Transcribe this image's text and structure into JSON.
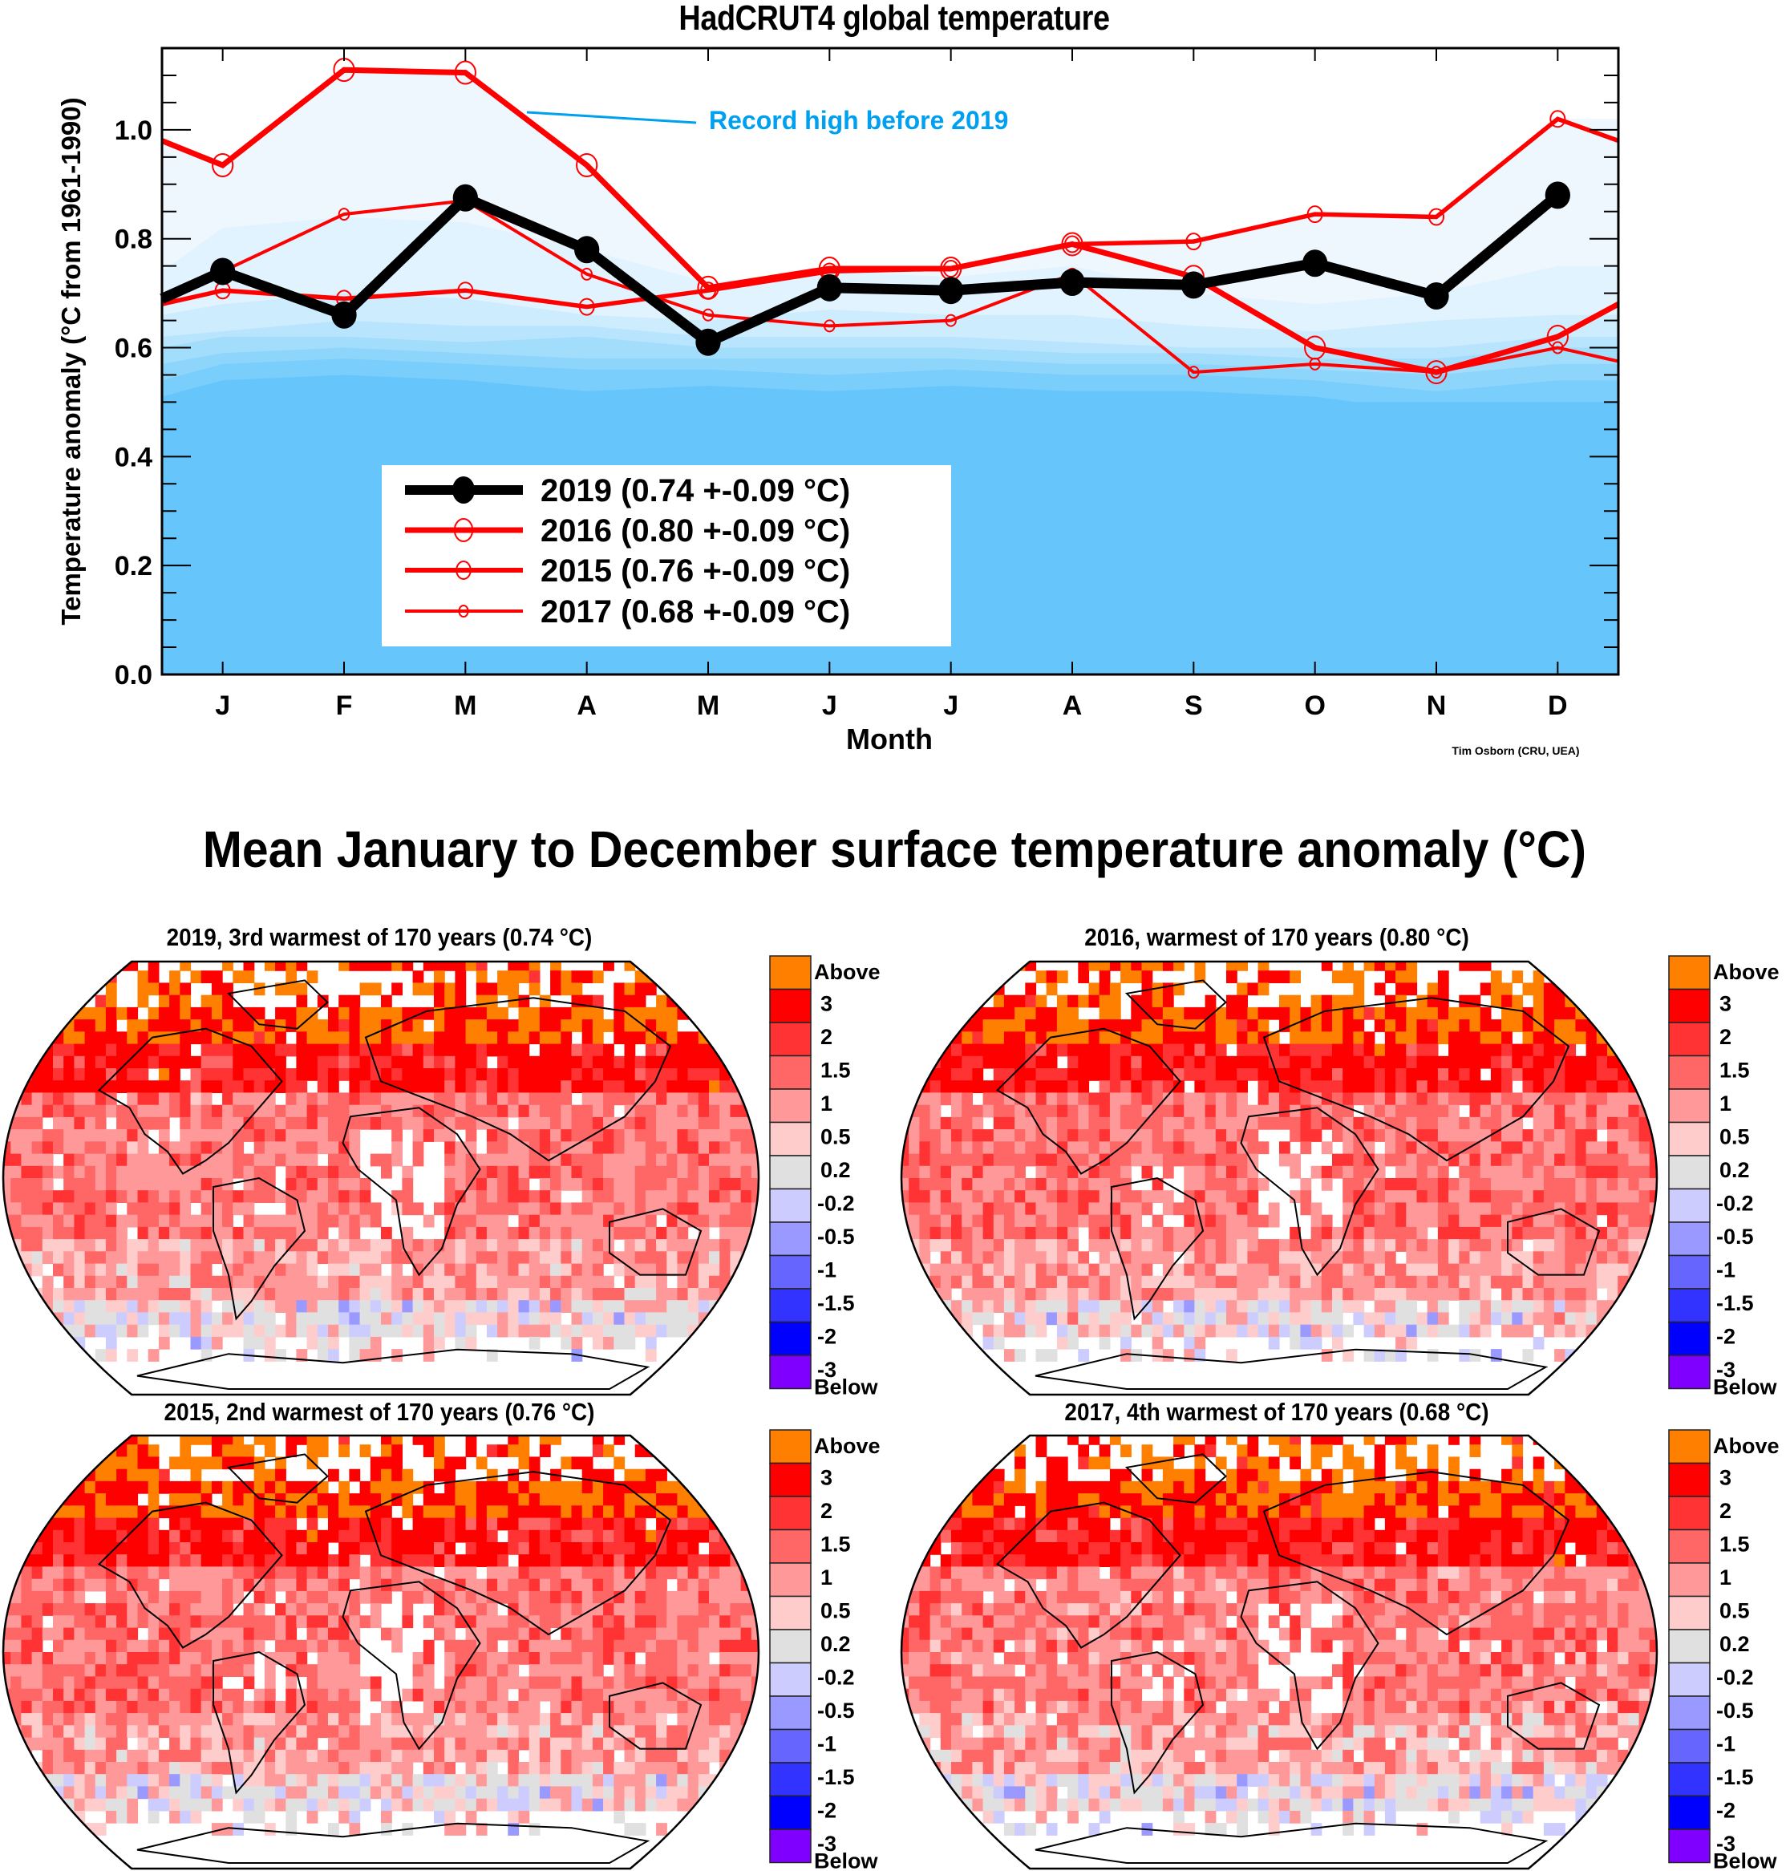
{
  "chart_data": [
    {
      "type": "line",
      "title": "HadCRUT4 global temperature",
      "xlabel": "Month",
      "ylabel": "Temperature anomaly (°C from 1961-1990)",
      "categories": [
        "J",
        "F",
        "M",
        "A",
        "M",
        "J",
        "J",
        "A",
        "S",
        "O",
        "N",
        "D"
      ],
      "ylim": [
        0.0,
        1.15
      ],
      "yticks": [
        "0.0",
        "0.2",
        "0.4",
        "0.6",
        "0.8",
        "1.0"
      ],
      "ytick_values": [
        0.0,
        0.2,
        0.4,
        0.6,
        0.8,
        1.0
      ],
      "grid": false,
      "legend_position": "bottom-left",
      "annotation": {
        "text": "Record high before 2019",
        "color": "#00A0F0",
        "points_to_month": "M-A"
      },
      "credit": "Tim Osborn (CRU, UEA)",
      "background_bands": {
        "description": "Shaded distribution of previous years' monthly anomalies (percentile bands)",
        "colors": [
          "#66C6FC",
          "#7ACEFC",
          "#8ED5FC",
          "#A3DDFC",
          "#B8E4FD",
          "#CDECFE",
          "#E1F3FE",
          "#EEF7FE"
        ],
        "upper_edges": [
          [
            0.51,
            0.54,
            0.55,
            0.54,
            0.52,
            0.53,
            0.52,
            0.53,
            0.52,
            0.52,
            0.51,
            0.48,
            0.5
          ],
          [
            0.54,
            0.57,
            0.58,
            0.57,
            0.56,
            0.56,
            0.55,
            0.56,
            0.55,
            0.55,
            0.54,
            0.52,
            0.54
          ],
          [
            0.57,
            0.59,
            0.6,
            0.59,
            0.58,
            0.58,
            0.58,
            0.58,
            0.57,
            0.57,
            0.56,
            0.55,
            0.57
          ],
          [
            0.6,
            0.62,
            0.62,
            0.61,
            0.62,
            0.6,
            0.6,
            0.6,
            0.59,
            0.59,
            0.58,
            0.58,
            0.6
          ],
          [
            0.62,
            0.63,
            0.65,
            0.64,
            0.64,
            0.62,
            0.62,
            0.62,
            0.61,
            0.6,
            0.6,
            0.6,
            0.62
          ],
          [
            0.66,
            0.68,
            0.7,
            0.69,
            0.66,
            0.65,
            0.67,
            0.66,
            0.66,
            0.64,
            0.63,
            0.65,
            0.66
          ],
          [
            0.74,
            0.82,
            0.84,
            0.83,
            0.78,
            0.72,
            0.74,
            0.73,
            0.75,
            0.7,
            0.68,
            0.7,
            0.75
          ],
          [
            0.98,
            0.93,
            1.11,
            1.11,
            0.935,
            0.71,
            0.745,
            0.745,
            0.79,
            0.79,
            0.845,
            0.845,
            1.02
          ]
        ]
      },
      "series": [
        {
          "name": "2019",
          "label": "2019 (0.74 +-0.09 °C)",
          "color": "#000000",
          "marker": "filled-circle",
          "edge_start": 0.69,
          "values": [
            0.74,
            0.66,
            0.875,
            0.78,
            0.61,
            0.71,
            0.705,
            0.72,
            0.715,
            0.755,
            0.695,
            0.88
          ],
          "edge_end": null
        },
        {
          "name": "2016",
          "label": "2016 (0.80 +-0.09 °C)",
          "color": "#FF0000",
          "marker": "open-circle-large",
          "edge_start": 0.98,
          "values": [
            0.935,
            1.11,
            1.105,
            0.935,
            0.71,
            0.745,
            0.745,
            0.79,
            0.73,
            0.6,
            0.555,
            0.62
          ],
          "edge_end": 0.68
        },
        {
          "name": "2015",
          "label": "2015 (0.76 +-0.09 °C)",
          "color": "#FF0000",
          "marker": "open-circle-medium",
          "edge_start": 0.68,
          "values": [
            0.705,
            0.69,
            0.705,
            0.675,
            0.705,
            0.74,
            0.745,
            0.79,
            0.795,
            0.845,
            0.84,
            1.02
          ],
          "edge_end": 0.98
        },
        {
          "name": "2017",
          "label": "2017 (0.68 +-0.09 °C)",
          "color": "#FF0000",
          "marker": "open-circle-small",
          "edge_start": 0.68,
          "values": [
            0.74,
            0.845,
            0.87,
            0.735,
            0.66,
            0.64,
            0.65,
            0.735,
            0.555,
            0.57,
            0.555,
            0.6
          ],
          "edge_end": 0.575
        }
      ]
    },
    {
      "type": "heatmap",
      "title": "Mean January to December surface temperature anomaly (°C)",
      "colorbar": {
        "labels": [
          "Above",
          "3",
          "2",
          "1.5",
          "1",
          "0.5",
          "0.2",
          "-0.2",
          "-0.5",
          "-1",
          "-1.5",
          "-2",
          "-3",
          "Below"
        ],
        "colors": [
          "#FF8000",
          "#FF0000",
          "#FF3333",
          "#FF6666",
          "#FF9999",
          "#FFCCCC",
          "#E0E0E0",
          "#CCCCFF",
          "#9999FF",
          "#6666FF",
          "#3333FF",
          "#0000FF",
          "#8000FF"
        ]
      },
      "panels": [
        {
          "year": "2019",
          "title": "2019, 3rd warmest of 170 years (0.74 °C)",
          "mean": 0.74,
          "rank": 3
        },
        {
          "year": "2016",
          "title": "2016, warmest of 170 years (0.80 °C)",
          "mean": 0.8,
          "rank": 1
        },
        {
          "year": "2015",
          "title": "2015, 2nd warmest of 170 years (0.76 °C)",
          "mean": 0.76,
          "rank": 2
        },
        {
          "year": "2017",
          "title": "2017, 4th warmest of 170 years (0.68 °C)",
          "mean": 0.68,
          "rank": 4
        }
      ],
      "total_years": 170
    }
  ]
}
